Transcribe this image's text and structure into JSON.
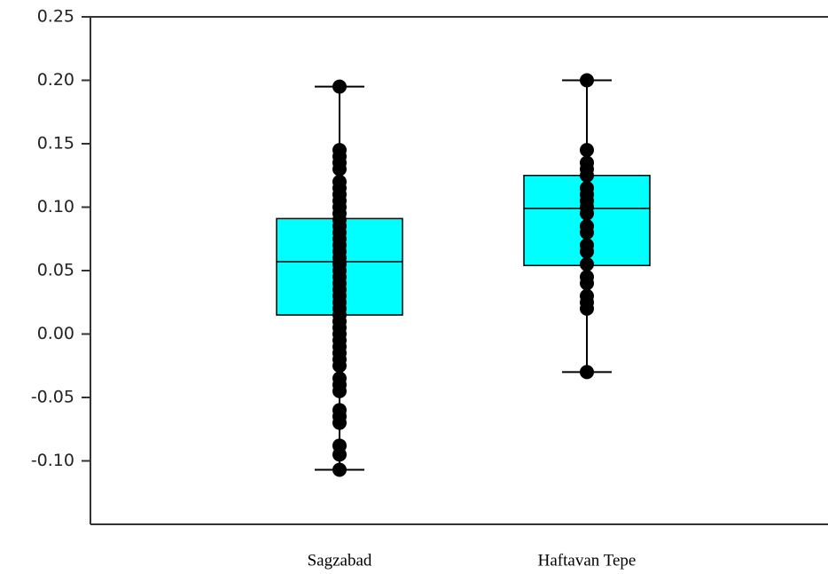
{
  "chart_data": {
    "type": "box",
    "categories": [
      "Sagzabad",
      "Haftavan Tepe"
    ],
    "box_color": "#00ffff",
    "point_color": "#000000",
    "ylim": [
      -0.15,
      0.25
    ],
    "yticks": [
      0.25,
      {
        "value": 0.2,
        "label": "0.20"
      },
      0.15,
      {
        "value": 0.1,
        "label": "0.10"
      },
      0.05,
      {
        "value": 0,
        "label": "0.00"
      },
      -0.05,
      {
        "value": -0.1,
        "label": "-0.10"
      }
    ],
    "boxes": [
      {
        "low": -0.107,
        "q1": 0.015,
        "median": 0.057,
        "q3": 0.091,
        "high": 0.195,
        "points": [
          -0.107,
          -0.095,
          -0.088,
          -0.07,
          -0.065,
          -0.06,
          -0.045,
          -0.04,
          -0.035,
          -0.025,
          -0.02,
          -0.015,
          -0.01,
          -0.005,
          0.0,
          0.005,
          0.01,
          0.015,
          0.02,
          0.025,
          0.03,
          0.035,
          0.04,
          0.045,
          0.05,
          0.055,
          0.06,
          0.065,
          0.07,
          0.075,
          0.08,
          0.085,
          0.09,
          0.095,
          0.1,
          0.105,
          0.11,
          0.115,
          0.12,
          0.13,
          0.135,
          0.14,
          0.145,
          0.195
        ]
      },
      {
        "low": -0.03,
        "q1": 0.054,
        "median": 0.099,
        "q3": 0.125,
        "high": 0.2,
        "points": [
          -0.03,
          0.02,
          0.025,
          0.03,
          0.04,
          0.045,
          0.055,
          0.065,
          0.07,
          0.08,
          0.085,
          0.095,
          0.1,
          0.105,
          0.11,
          0.115,
          0.125,
          0.13,
          0.135,
          0.145,
          0.2
        ]
      }
    ]
  }
}
